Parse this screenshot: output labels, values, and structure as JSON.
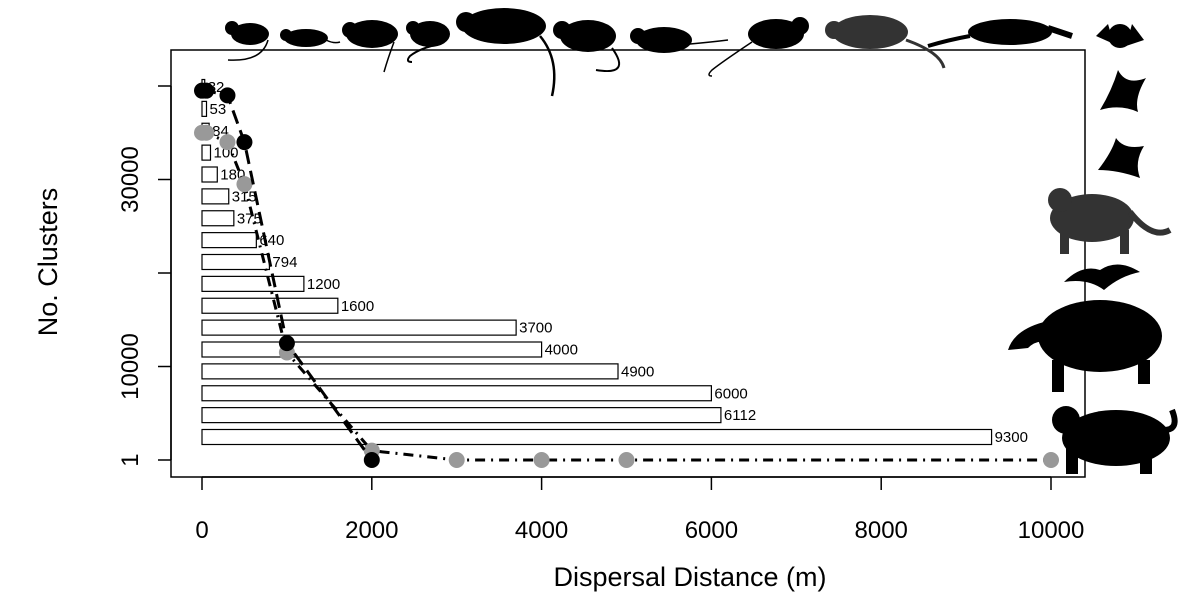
{
  "chart_data": {
    "type": "bar",
    "xlabel": "Dispersal Distance (m)",
    "ylabel": "No. Clusters",
    "xlim": [
      0,
      10000
    ],
    "x_ticks": [
      {
        "value": 0,
        "label": "0"
      },
      {
        "value": 2000,
        "label": "2000"
      },
      {
        "value": 4000,
        "label": "4000"
      },
      {
        "value": 6000,
        "label": "6000"
      },
      {
        "value": 8000,
        "label": "8000"
      },
      {
        "value": 10000,
        "label": "10000"
      }
    ],
    "y_ticks": [
      {
        "value": 1,
        "label": "1"
      },
      {
        "value": 10000,
        "label": "10000"
      },
      {
        "value": 30000,
        "label": "30000"
      }
    ],
    "bars": {
      "orientation": "horizontal",
      "values": [
        9300,
        6112,
        6000,
        4900,
        4000,
        3700,
        1600,
        1200,
        794,
        640,
        375,
        315,
        180,
        100,
        84,
        53,
        32
      ],
      "labels": [
        "9300",
        "6112",
        "6000",
        "4900",
        "4000",
        "3700",
        "1600",
        "1200",
        "794",
        "640",
        "375",
        "315",
        "180",
        "100",
        "84",
        "53",
        "32"
      ]
    },
    "series": [
      {
        "color": "#000000",
        "points": [
          [
            0,
            39500
          ],
          [
            50,
            39500
          ],
          [
            300,
            39000
          ],
          [
            500,
            34000
          ],
          [
            1000,
            12500
          ],
          [
            2000,
            1
          ]
        ]
      },
      {
        "color": "#999999",
        "points": [
          [
            0,
            35000
          ],
          [
            50,
            35000
          ],
          [
            300,
            34000
          ],
          [
            500,
            29500
          ],
          [
            1000,
            11500
          ],
          [
            2000,
            1000
          ],
          [
            3000,
            1
          ],
          [
            4000,
            1
          ],
          [
            5000,
            1
          ],
          [
            10000,
            1
          ]
        ]
      }
    ],
    "grid": false,
    "legend": "none"
  },
  "silhouettes": [
    {
      "name": "mouse-silhouette-1",
      "color": "#000000"
    },
    {
      "name": "mouse-silhouette-2",
      "color": "#000000"
    },
    {
      "name": "rat-silhouette-1",
      "color": "#000000"
    },
    {
      "name": "squirrel-silhouette",
      "color": "#000000"
    },
    {
      "name": "rat-silhouette-2",
      "color": "#000000"
    },
    {
      "name": "rat-silhouette-3",
      "color": "#000000"
    },
    {
      "name": "mouse-silhouette-3",
      "color": "#000000"
    },
    {
      "name": "rat-silhouette-4",
      "color": "#000000"
    },
    {
      "name": "opossum-silhouette",
      "color": "#333333"
    },
    {
      "name": "anteater-silhouette",
      "color": "#000000"
    },
    {
      "name": "bat-silhouette-1",
      "color": "#000000"
    },
    {
      "name": "bat-silhouette-2",
      "color": "#000000"
    },
    {
      "name": "bat-silhouette-3",
      "color": "#000000"
    },
    {
      "name": "puma-silhouette",
      "color": "#333333"
    },
    {
      "name": "bat-silhouette-4",
      "color": "#000000"
    },
    {
      "name": "tapir-silhouette",
      "color": "#000000"
    },
    {
      "name": "jaguar-silhouette",
      "color": "#000000"
    }
  ]
}
